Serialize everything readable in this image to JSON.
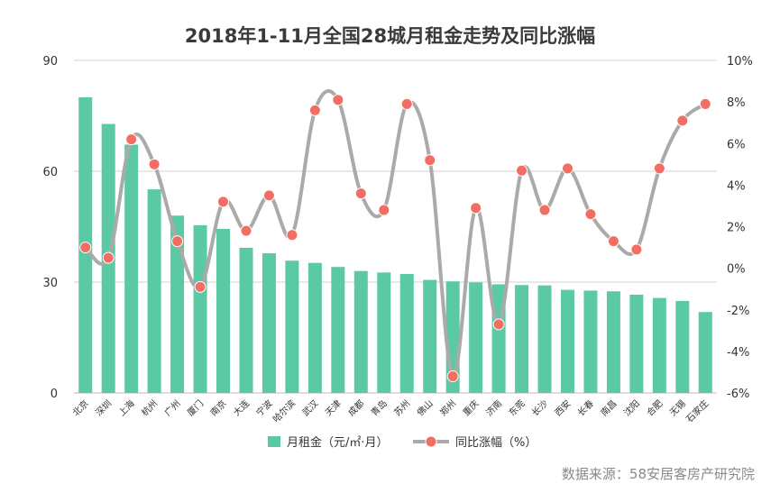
{
  "chart_data": {
    "type": "bar",
    "title": "2018年1-11月全国28城月租金走势及同比涨幅",
    "source": "数据来源：58安居客房产研究院",
    "categories": [
      "北京",
      "深圳",
      "上海",
      "杭州",
      "广州",
      "厦门",
      "南京",
      "大连",
      "宁波",
      "哈尔滨",
      "武汉",
      "天津",
      "成都",
      "青岛",
      "苏州",
      "佛山",
      "郑州",
      "重庆",
      "济南",
      "东莞",
      "长沙",
      "西安",
      "长春",
      "南昌",
      "沈阳",
      "合肥",
      "无锡",
      "石家庄"
    ],
    "series": [
      {
        "name": "月租金（元/㎡·月）",
        "type": "bar",
        "axis": "left",
        "color": "#5bc9a4",
        "values": [
          80.0,
          72.8,
          67.2,
          55.1,
          48.0,
          45.4,
          44.4,
          39.3,
          37.8,
          35.8,
          35.2,
          34.1,
          33.0,
          32.6,
          32.2,
          30.6,
          30.2,
          29.9,
          29.4,
          29.2,
          29.1,
          27.9,
          27.7,
          27.5,
          26.6,
          25.7,
          24.9,
          21.9
        ]
      },
      {
        "name": "同比涨幅（%）",
        "type": "line",
        "axis": "right",
        "color": "#aaaaaa",
        "marker_color": "#f26d62",
        "values": [
          1.0,
          0.5,
          6.2,
          5.0,
          1.3,
          -0.9,
          3.2,
          1.8,
          3.5,
          1.6,
          7.6,
          8.1,
          3.6,
          2.8,
          7.9,
          5.2,
          -5.2,
          2.9,
          -2.7,
          4.7,
          2.8,
          4.8,
          2.6,
          1.3,
          0.9,
          4.8,
          7.1,
          7.9
        ]
      }
    ],
    "left_axis": {
      "min": 0,
      "max": 90,
      "ticks": [
        0,
        30,
        60,
        90
      ]
    },
    "right_axis": {
      "min": -6,
      "max": 10,
      "ticks": [
        -6,
        -4,
        -2,
        0,
        2,
        4,
        6,
        8,
        10
      ],
      "unit": "%"
    },
    "grid": true,
    "legend_position": "bottom"
  }
}
